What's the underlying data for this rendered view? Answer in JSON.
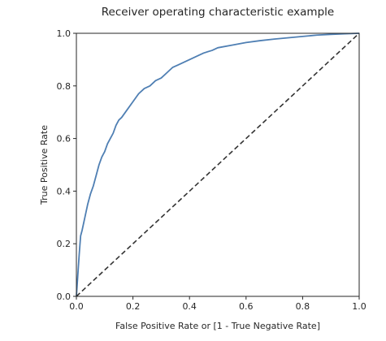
{
  "chart_data": {
    "type": "line",
    "title": "Receiver operating characteristic example",
    "xlabel": "False Positive Rate or [1 - True Negative Rate]",
    "ylabel": "True Positive Rate",
    "xlim": [
      0.0,
      1.0
    ],
    "ylim": [
      0.0,
      1.0
    ],
    "xticks": [
      "0.0",
      "0.2",
      "0.4",
      "0.6",
      "0.8",
      "1.0"
    ],
    "yticks": [
      "0.0",
      "0.2",
      "0.4",
      "0.6",
      "0.8",
      "1.0"
    ],
    "grid": false,
    "legend": "none",
    "series": [
      {
        "color": "#4f7fb3",
        "style": "solid",
        "x": [
          0.0,
          0.005,
          0.01,
          0.015,
          0.02,
          0.03,
          0.04,
          0.05,
          0.06,
          0.07,
          0.08,
          0.09,
          0.1,
          0.11,
          0.12,
          0.13,
          0.14,
          0.15,
          0.16,
          0.18,
          0.2,
          0.22,
          0.24,
          0.26,
          0.28,
          0.3,
          0.32,
          0.34,
          0.36,
          0.38,
          0.4,
          0.42,
          0.45,
          0.48,
          0.5,
          0.55,
          0.6,
          0.65,
          0.7,
          0.75,
          0.8,
          0.85,
          0.9,
          0.95,
          1.0
        ],
        "y": [
          0.0,
          0.08,
          0.16,
          0.23,
          0.25,
          0.3,
          0.35,
          0.39,
          0.42,
          0.46,
          0.5,
          0.53,
          0.55,
          0.58,
          0.6,
          0.62,
          0.65,
          0.67,
          0.68,
          0.71,
          0.74,
          0.77,
          0.79,
          0.8,
          0.82,
          0.83,
          0.85,
          0.87,
          0.88,
          0.89,
          0.9,
          0.91,
          0.925,
          0.935,
          0.945,
          0.955,
          0.965,
          0.972,
          0.978,
          0.983,
          0.988,
          0.993,
          0.996,
          0.998,
          1.0
        ]
      },
      {
        "color": "#333333",
        "style": "dashed",
        "x": [
          0.0,
          1.0
        ],
        "y": [
          0.0,
          1.0
        ]
      }
    ]
  }
}
